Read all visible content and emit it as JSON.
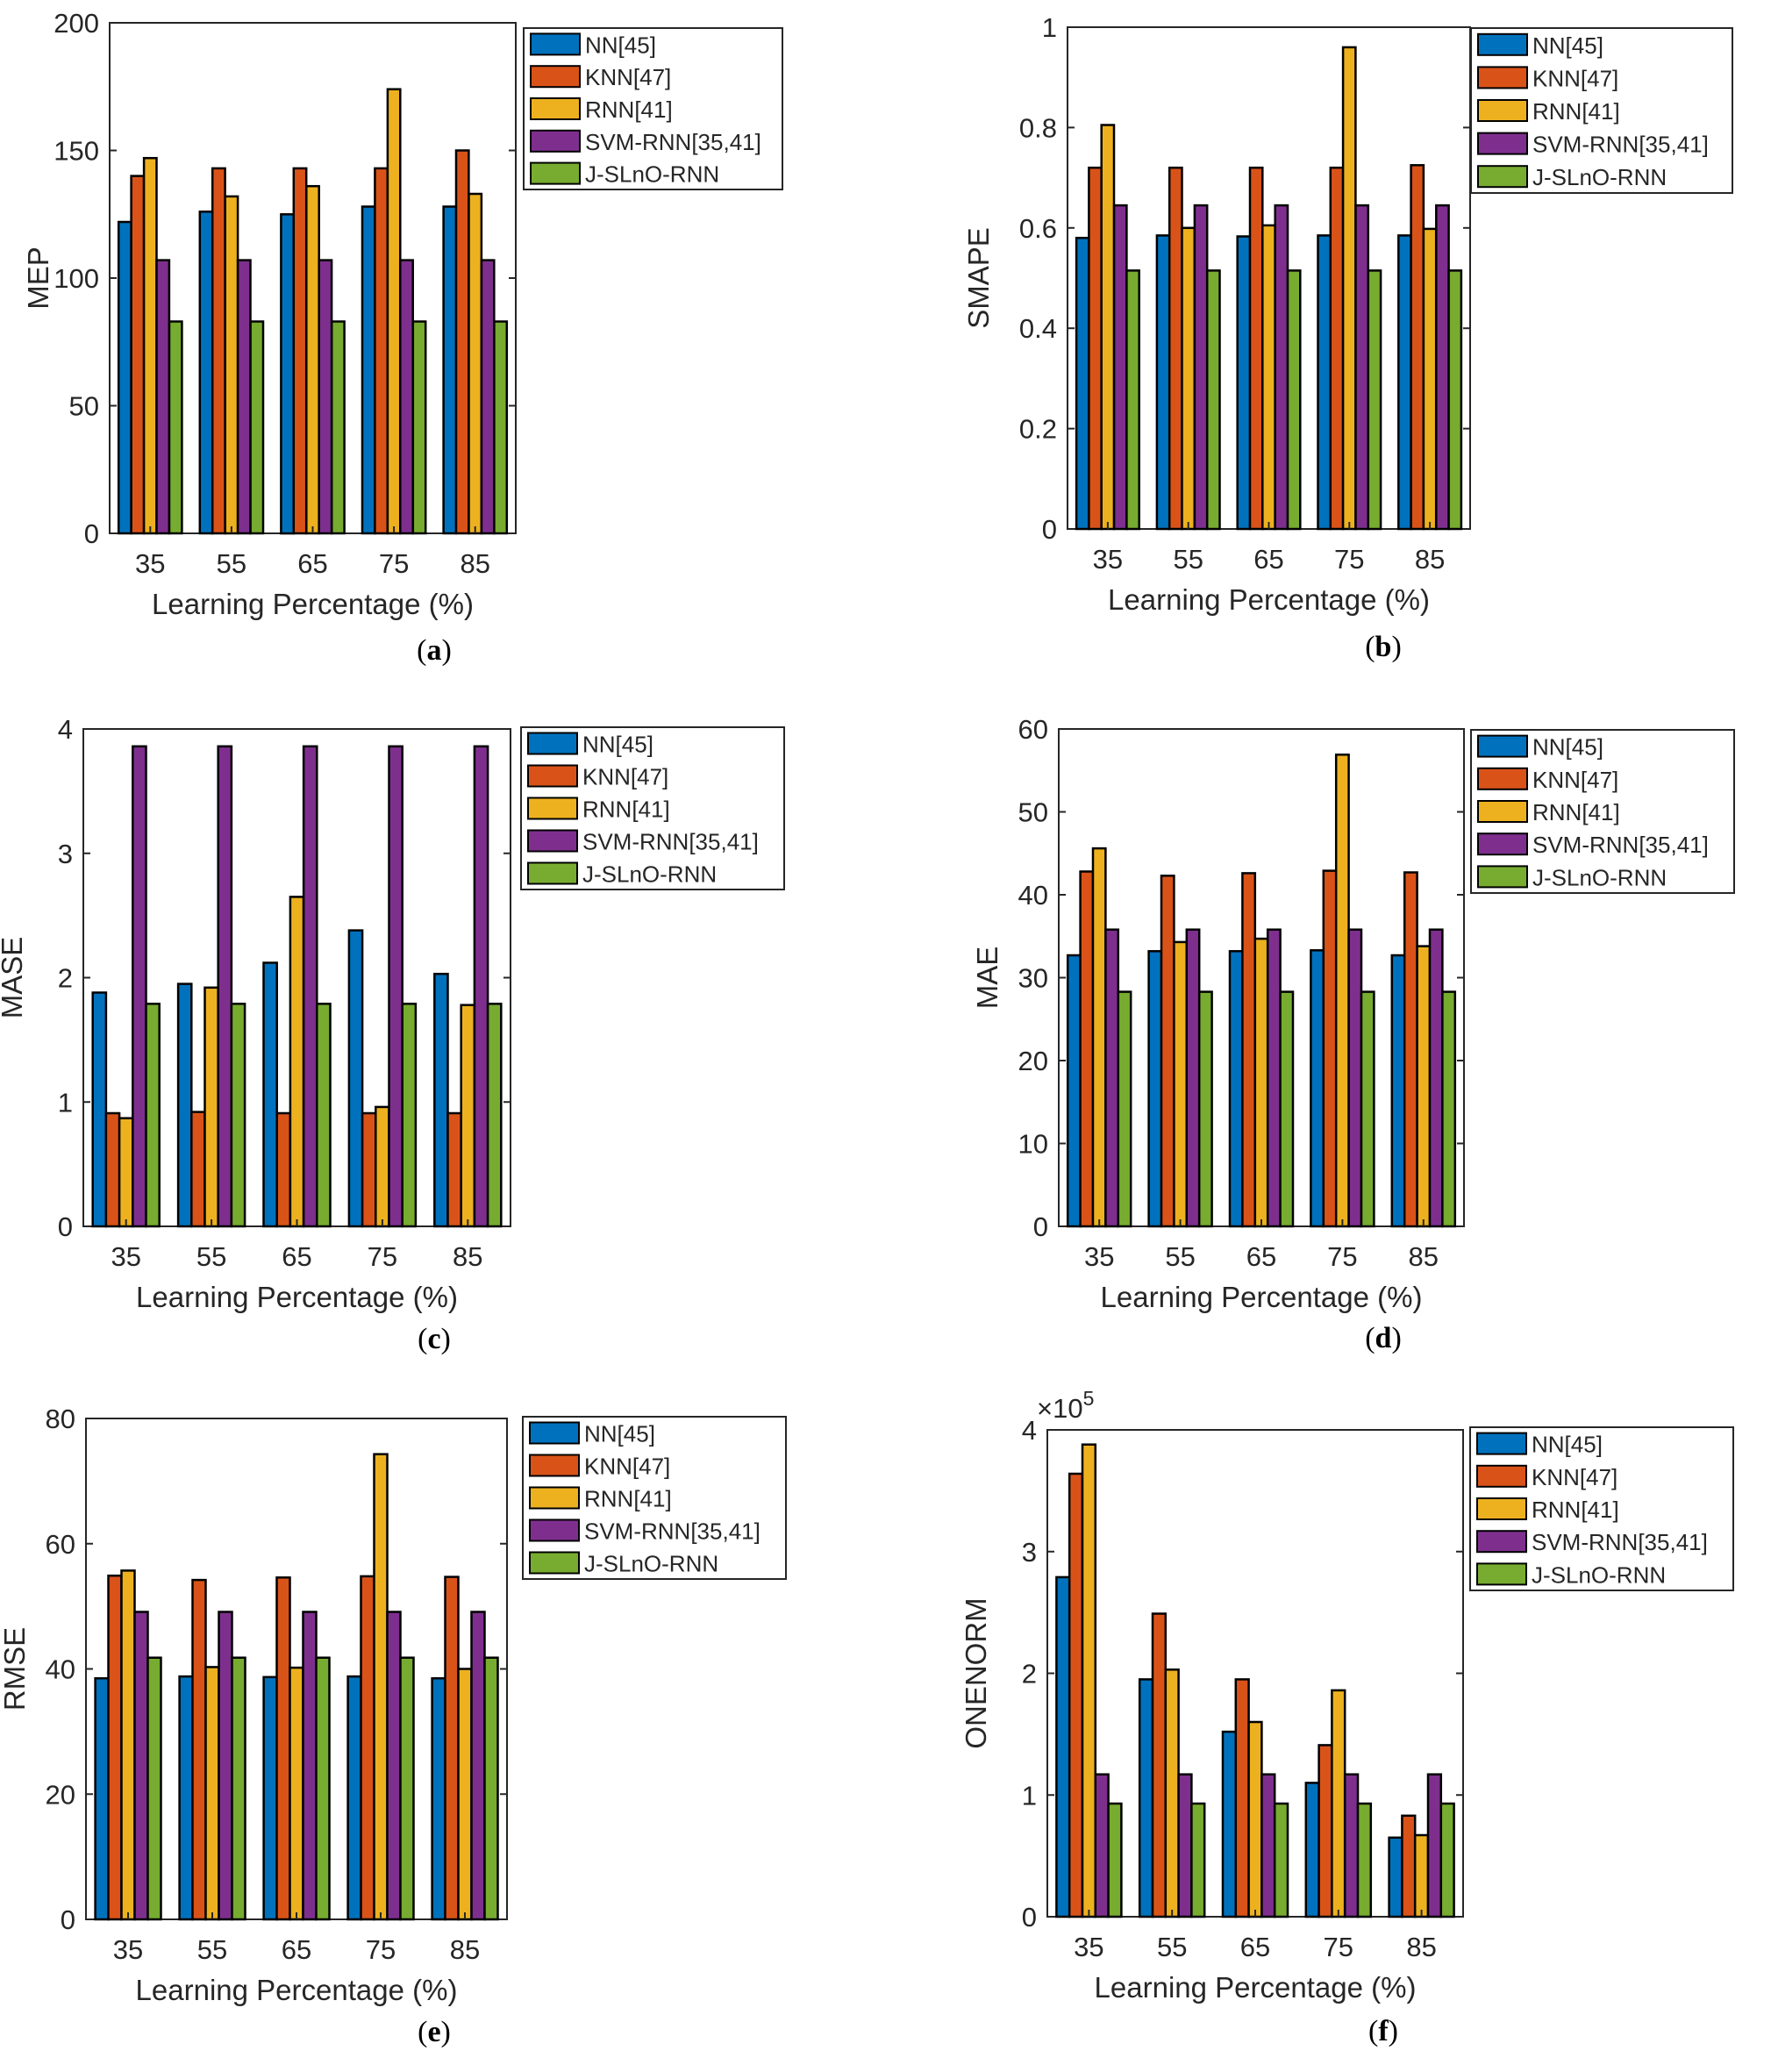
{
  "categories": [
    "35",
    "55",
    "65",
    "75",
    "85"
  ],
  "xlabel": "Learning Percentage (%)",
  "legend": [
    "NN[45]",
    "KNN[47]",
    "RNN[41]",
    "SVM-RNN[35,41]",
    "J-SLnO-RNN"
  ],
  "colors": [
    "#0072BD",
    "#D95319",
    "#EDB120",
    "#7E2F8E",
    "#77AC30"
  ],
  "chart_data": [
    {
      "type": "bar",
      "panel": "(a)",
      "caption_letter": "a",
      "ylabel": "MEP",
      "ylim": [
        0,
        200
      ],
      "yticks": [
        "0",
        "50",
        "100",
        "150",
        "200"
      ],
      "series": [
        {
          "name": "NN[45]",
          "values": [
            122,
            126,
            125,
            128,
            128
          ]
        },
        {
          "name": "KNN[47]",
          "values": [
            140,
            143,
            143,
            143,
            150
          ]
        },
        {
          "name": "RNN[41]",
          "values": [
            147,
            132,
            136,
            174,
            133
          ]
        },
        {
          "name": "SVM-RNN[35,41]",
          "values": [
            107,
            107,
            107,
            107,
            107
          ]
        },
        {
          "name": "J-SLnO-RNN",
          "values": [
            83,
            83,
            83,
            83,
            83
          ]
        }
      ]
    },
    {
      "type": "bar",
      "panel": "(b)",
      "caption_letter": "b",
      "ylabel": "SMAPE",
      "ylim": [
        0,
        1
      ],
      "yticks": [
        "0",
        "0.2",
        "0.4",
        "0.6",
        "0.8",
        "1"
      ],
      "series": [
        {
          "name": "NN[45]",
          "values": [
            0.58,
            0.585,
            0.583,
            0.585,
            0.585
          ]
        },
        {
          "name": "KNN[47]",
          "values": [
            0.72,
            0.72,
            0.72,
            0.72,
            0.725
          ]
        },
        {
          "name": "RNN[41]",
          "values": [
            0.805,
            0.6,
            0.605,
            0.96,
            0.598
          ]
        },
        {
          "name": "SVM-RNN[35,41]",
          "values": [
            0.645,
            0.645,
            0.645,
            0.645,
            0.645
          ]
        },
        {
          "name": "J-SLnO-RNN",
          "values": [
            0.515,
            0.515,
            0.515,
            0.515,
            0.515
          ]
        }
      ]
    },
    {
      "type": "bar",
      "panel": "(c)",
      "caption_letter": "c",
      "ylabel": "MASE",
      "ylim": [
        0,
        4
      ],
      "yticks": [
        "0",
        "1",
        "2",
        "3",
        "4"
      ],
      "series": [
        {
          "name": "NN[45]",
          "values": [
            1.88,
            1.95,
            2.12,
            2.38,
            2.03
          ]
        },
        {
          "name": "KNN[47]",
          "values": [
            0.91,
            0.92,
            0.91,
            0.91,
            0.91
          ]
        },
        {
          "name": "RNN[41]",
          "values": [
            0.87,
            1.92,
            2.65,
            0.96,
            1.78
          ]
        },
        {
          "name": "SVM-RNN[35,41]",
          "values": [
            3.86,
            3.86,
            3.86,
            3.86,
            3.86
          ]
        },
        {
          "name": "J-SLnO-RNN",
          "values": [
            1.79,
            1.79,
            1.79,
            1.79,
            1.79
          ]
        }
      ]
    },
    {
      "type": "bar",
      "panel": "(d)",
      "caption_letter": "d",
      "ylabel": "MAE",
      "ylim": [
        0,
        60
      ],
      "yticks": [
        "0",
        "10",
        "20",
        "30",
        "40",
        "50",
        "60"
      ],
      "series": [
        {
          "name": "NN[45]",
          "values": [
            32.7,
            33.2,
            33.2,
            33.3,
            32.7
          ]
        },
        {
          "name": "KNN[47]",
          "values": [
            42.8,
            42.3,
            42.6,
            42.9,
            42.7
          ]
        },
        {
          "name": "RNN[41]",
          "values": [
            45.6,
            34.3,
            34.7,
            56.9,
            33.8
          ]
        },
        {
          "name": "SVM-RNN[35,41]",
          "values": [
            35.8,
            35.8,
            35.8,
            35.8,
            35.8
          ]
        },
        {
          "name": "J-SLnO-RNN",
          "values": [
            28.3,
            28.3,
            28.3,
            28.3,
            28.3
          ]
        }
      ]
    },
    {
      "type": "bar",
      "panel": "(e)",
      "caption_letter": "e",
      "ylabel": "RMSE",
      "ylim": [
        0,
        80
      ],
      "yticks": [
        "0",
        "20",
        "40",
        "60",
        "80"
      ],
      "series": [
        {
          "name": "NN[45]",
          "values": [
            38.5,
            38.8,
            38.7,
            38.8,
            38.5
          ]
        },
        {
          "name": "KNN[47]",
          "values": [
            54.9,
            54.2,
            54.6,
            54.8,
            54.7
          ]
        },
        {
          "name": "RNN[41]",
          "values": [
            55.7,
            40.3,
            40.2,
            74.3,
            40.0
          ]
        },
        {
          "name": "SVM-RNN[35,41]",
          "values": [
            49.1,
            49.1,
            49.1,
            49.1,
            49.1
          ]
        },
        {
          "name": "J-SLnO-RNN",
          "values": [
            41.8,
            41.8,
            41.8,
            41.8,
            41.8
          ]
        }
      ]
    },
    {
      "type": "bar",
      "panel": "(f)",
      "caption_letter": "f",
      "ylabel": "ONENORM",
      "ylim": [
        0,
        4
      ],
      "yticks": [
        "0",
        "1",
        "2",
        "3",
        "4"
      ],
      "multiplier_base": "×10",
      "multiplier_exp": "5",
      "series": [
        {
          "name": "NN[45]",
          "values": [
            2.79,
            1.95,
            1.52,
            1.1,
            0.65
          ]
        },
        {
          "name": "KNN[47]",
          "values": [
            3.64,
            2.49,
            1.95,
            1.41,
            0.83
          ]
        },
        {
          "name": "RNN[41]",
          "values": [
            3.88,
            2.03,
            1.6,
            1.86,
            0.67
          ]
        },
        {
          "name": "SVM-RNN[35,41]",
          "values": [
            1.17,
            1.17,
            1.17,
            1.17,
            1.17
          ]
        },
        {
          "name": "J-SLnO-RNN",
          "values": [
            0.93,
            0.93,
            0.93,
            0.93,
            0.93
          ]
        }
      ]
    }
  ]
}
